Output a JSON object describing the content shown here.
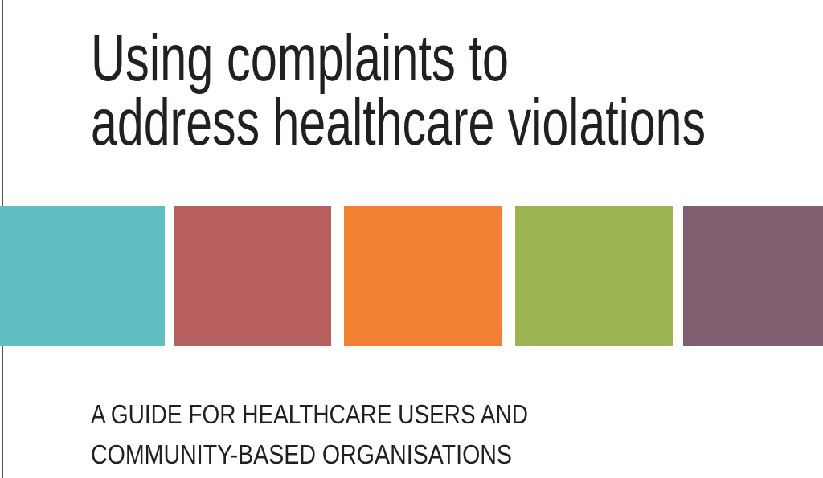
{
  "title": {
    "lines": [
      "Using complaints to",
      "address healthcare violations"
    ]
  },
  "subtitle": {
    "lines": [
      "A GUIDE FOR HEALTHCARE USERS AND",
      "COMMUNITY-BASED ORGANISATIONS"
    ]
  }
}
